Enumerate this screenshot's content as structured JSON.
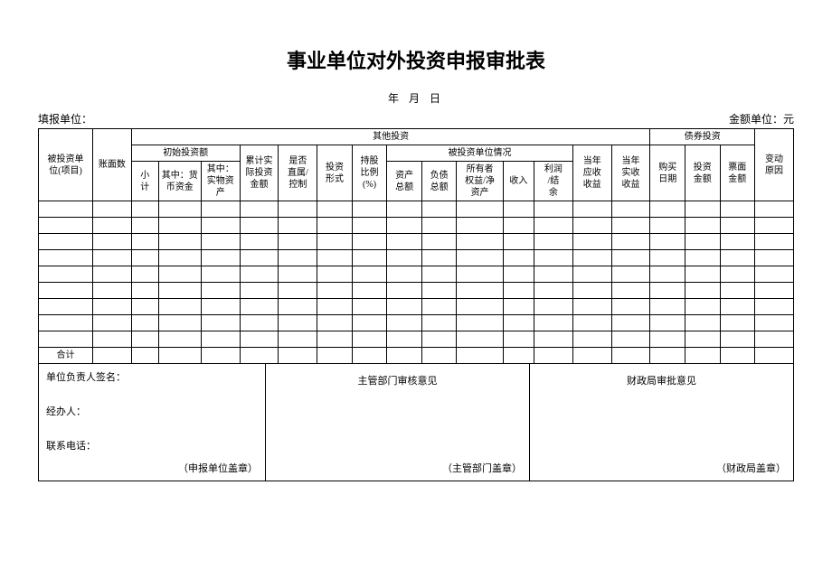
{
  "title": "事业单位对外投资申报审批表",
  "date_line": "年  月  日",
  "meta": {
    "left": "填报单位：",
    "right": "金额单位：元"
  },
  "headers": {
    "col_invested_unit": "被投资单\n位(项目)",
    "col_book_value": "账面数",
    "group_other_invest": "其他投资",
    "group_bond_invest": "债券投资",
    "col_change_reason": "变动\n原因",
    "group_initial_invest": "初始投资额",
    "col_subtotal": "小\n计",
    "col_monetary": "其中：货\n币资金",
    "col_physical": "其中：\n实物资\n产",
    "col_accum_actual": "累计实\n际投资\n金额",
    "col_direct_control": "是否\n直属/\n控制",
    "col_invest_form": "投资\n形式",
    "col_share_ratio": "持股\n比例\n(%)",
    "group_invested_unit_info": "被投资单位情况",
    "col_asset_total": "资产\n总额",
    "col_liab_total": "负债\n总额",
    "col_owner_equity": "所有者\n权益/净\n资产",
    "col_income": "收入",
    "col_profit_balance": "利润\n/结\n余",
    "col_receivable": "当年\n应收\n收益",
    "col_actual_gain": "当年\n实收\n收益",
    "col_buy_date": "购买\n日期",
    "col_invest_amount": "投资\n金额",
    "col_face_amount": "票面\n金额",
    "row_total": "合计"
  },
  "sig": {
    "leader": "单位负责人签名：",
    "handler": "经办人：",
    "phone": "联系电话：",
    "mid_title": "主管部门审核意见",
    "right_title": "财政局审批意见",
    "stamp_left": "（申报单位盖章）",
    "stamp_mid": "（主管部门盖章）",
    "stamp_right": "（财政局盖章）"
  },
  "layout": {
    "colwidths_pct": [
      7,
      5,
      3.5,
      5.5,
      5,
      5,
      5,
      4.5,
      4.5,
      4.5,
      4.5,
      6,
      4,
      5,
      5,
      5,
      4.5,
      4.5,
      4.5,
      5
    ]
  }
}
